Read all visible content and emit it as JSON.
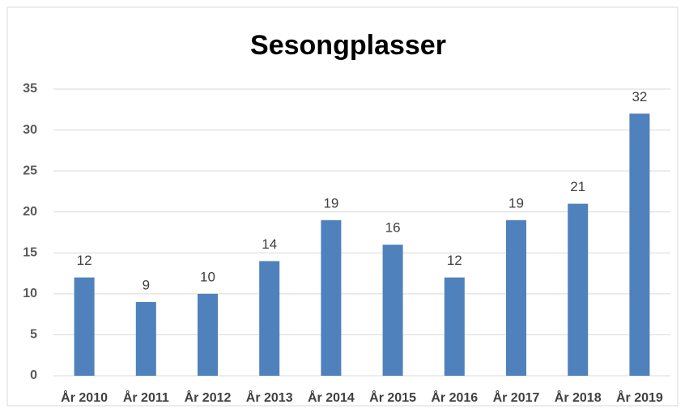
{
  "chart_data": {
    "type": "bar",
    "title": "Sesongplasser",
    "categories": [
      "År 2010",
      "År 2011",
      "År 2012",
      "År 2013",
      "År 2014",
      "År 2015",
      "År 2016",
      "År 2017",
      "År 2018",
      "År 2019"
    ],
    "values": [
      12,
      9,
      10,
      14,
      19,
      16,
      12,
      19,
      21,
      32
    ],
    "color": "#4f81bd",
    "ylim": [
      0,
      35
    ],
    "yticks": [
      0,
      5,
      10,
      15,
      20,
      25,
      30,
      35
    ],
    "grid": true
  }
}
